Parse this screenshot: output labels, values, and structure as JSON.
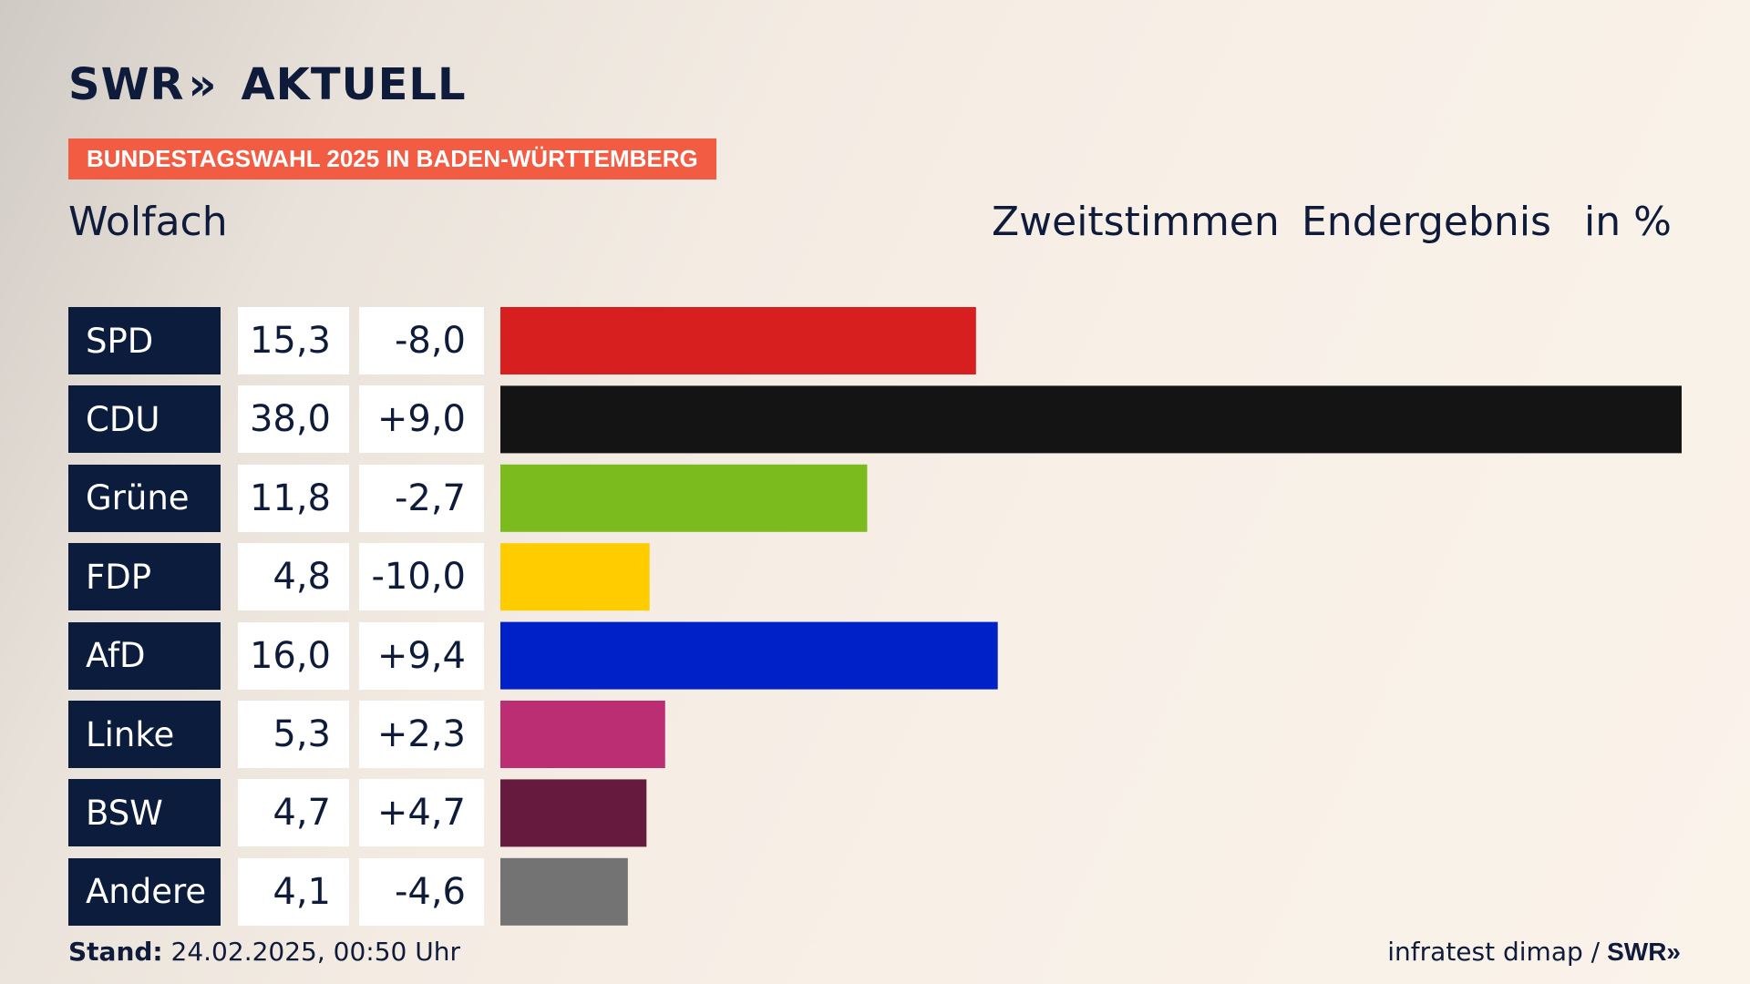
{
  "brand": {
    "logo_text": "SWR",
    "logo_chevron": "»",
    "logo_suffix": "AKTUELL"
  },
  "banner": "BUNDESTAGSWAHL 2025 IN BADEN-WÜRTTEMBERG",
  "place": "Wolfach",
  "header": {
    "vote_type": "Zweitstimmen",
    "status": "Endergebnis",
    "unit": "in %"
  },
  "chart_data": {
    "type": "bar",
    "orientation": "horizontal",
    "categories": [
      "SPD",
      "CDU",
      "Grüne",
      "FDP",
      "AfD",
      "Linke",
      "BSW",
      "Andere"
    ],
    "values": [
      15.3,
      38.0,
      11.8,
      4.8,
      16.0,
      5.3,
      4.7,
      4.1
    ],
    "value_labels": [
      "15,3",
      "38,0",
      "11,8",
      "4,8",
      "16,0",
      "5,3",
      "4,7",
      "4,1"
    ],
    "diff_labels": [
      "-8,0",
      "+9,0",
      "-2,7",
      "-10,0",
      "+9,4",
      "+2,3",
      "+4,7",
      "-4,6"
    ],
    "colors": [
      "#d81f1f",
      "#141414",
      "#7bbb1e",
      "#ffcc00",
      "#0021c8",
      "#bb2e73",
      "#661a3d",
      "#737373"
    ],
    "xlim": [
      0,
      38.0
    ]
  },
  "footer": {
    "stand_label": "Stand:",
    "stand_value": "24.02.2025, 00:50 Uhr",
    "source": "infratest dimap /",
    "source_brand": "SWR",
    "source_chevron": "»"
  }
}
